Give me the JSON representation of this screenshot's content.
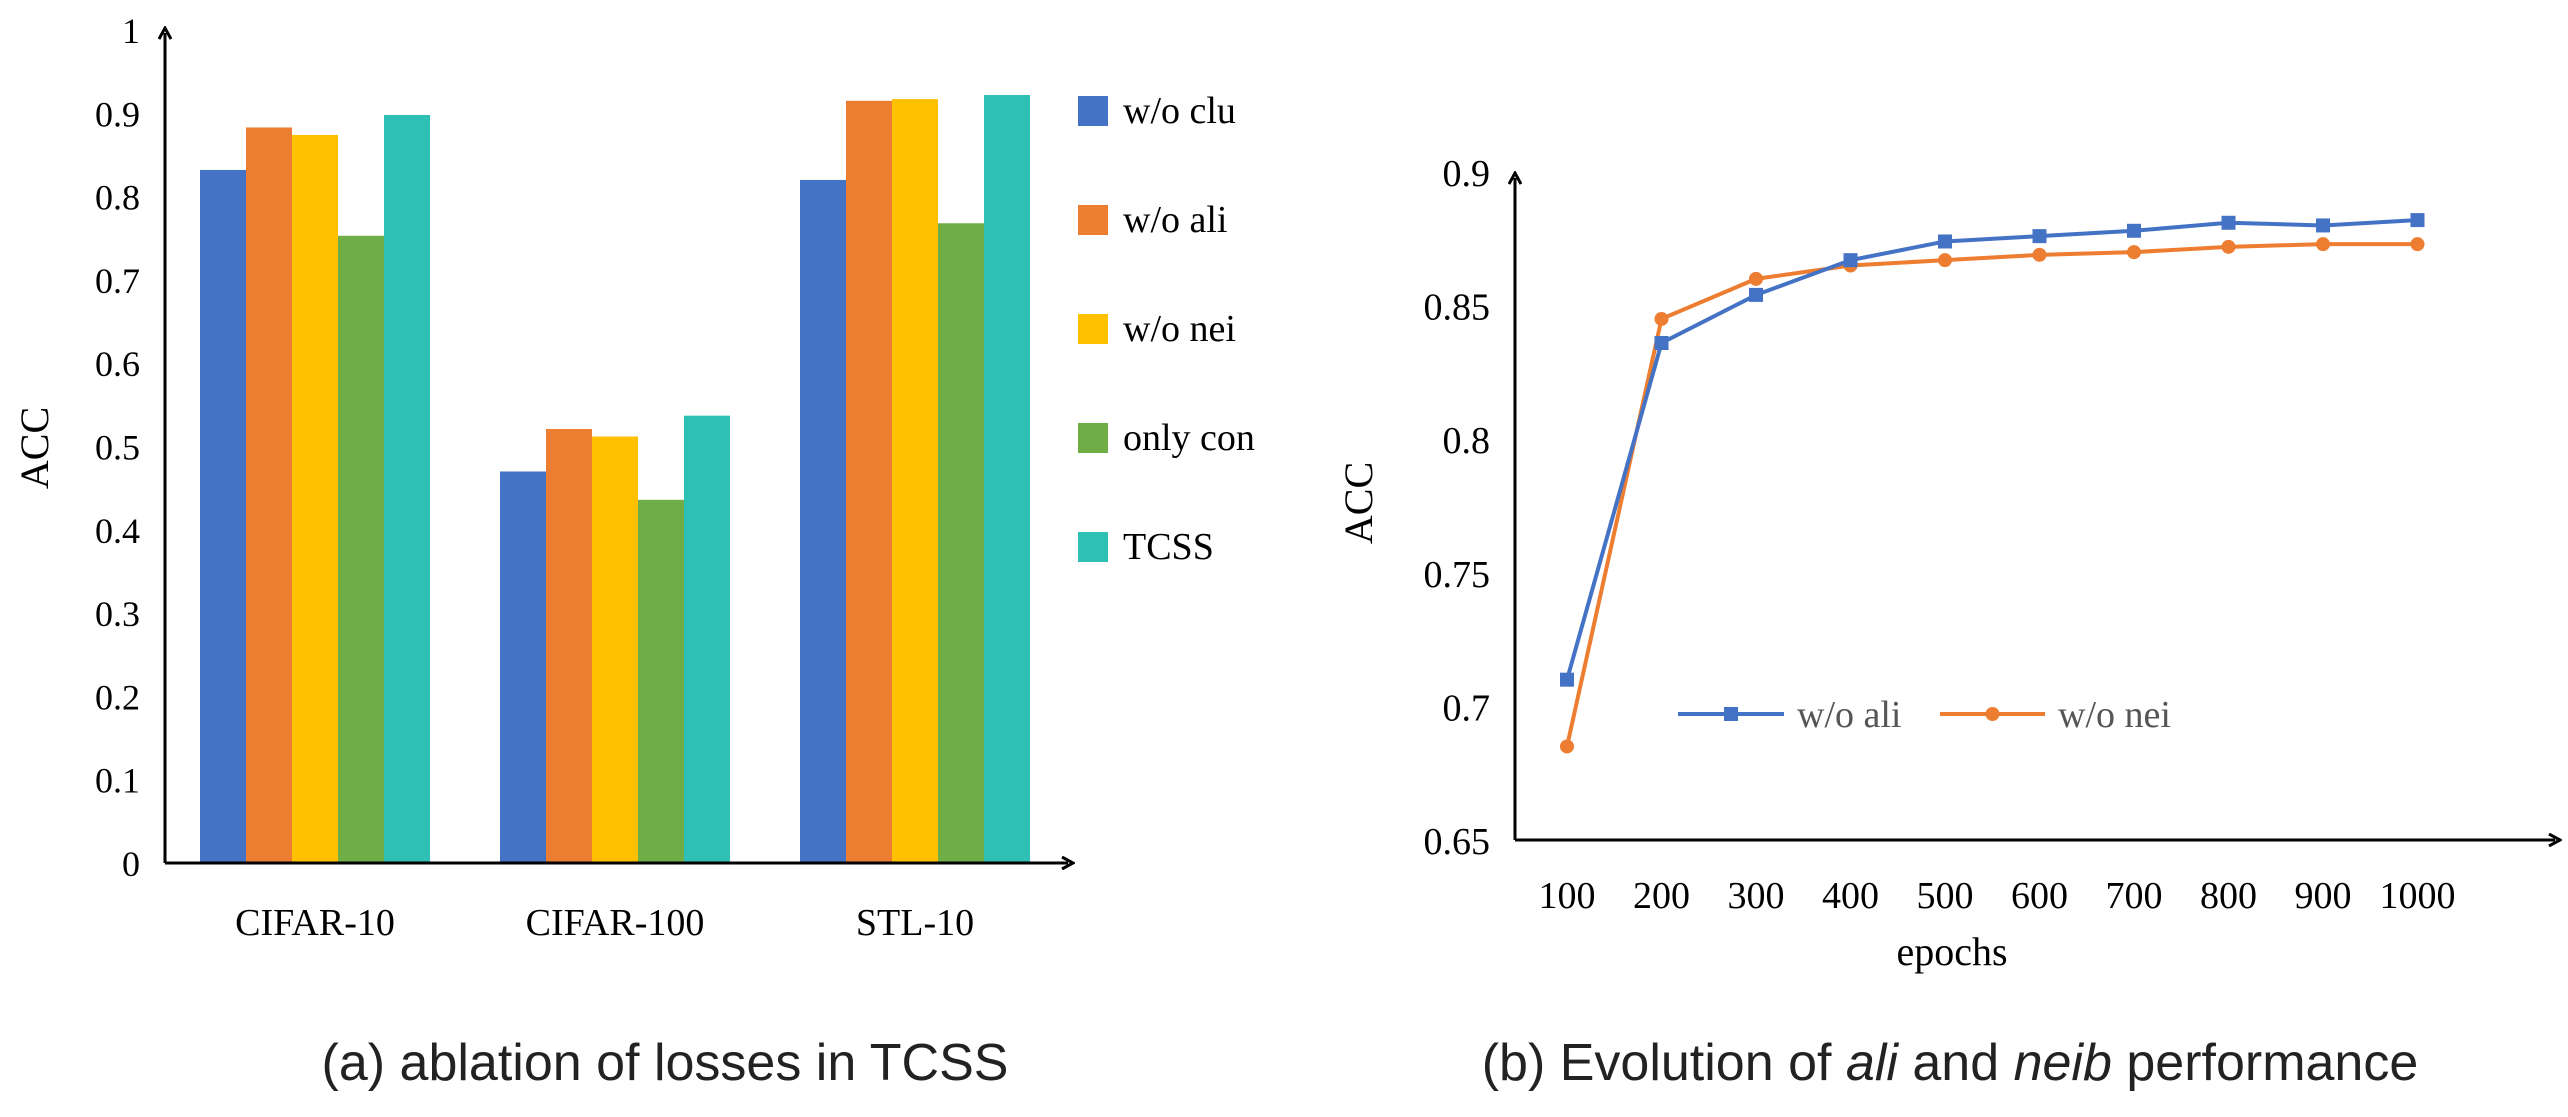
{
  "colors": {
    "w_o_clu": "#4472C4",
    "w_o_ali": "#ED7D31",
    "w_o_nei": "#FFC000",
    "only_con": "#70AD47",
    "tcss": "#2EC0B4",
    "axis": "#000000"
  },
  "chart_data": [
    {
      "type": "bar",
      "title": "",
      "caption": "(a) ablation of losses in TCSS",
      "xlabel": "",
      "ylabel": "ACC",
      "ylim": [
        0,
        1
      ],
      "yticks": [
        "0",
        "0.1",
        "0.2",
        "0.3",
        "0.4",
        "0.5",
        "0.6",
        "0.7",
        "0.8",
        "0.9",
        "1"
      ],
      "categories": [
        "CIFAR-10",
        "CIFAR-100",
        "STL-10"
      ],
      "legend_position": "right",
      "series": [
        {
          "name": "w/o clu",
          "values": [
            0.832,
            0.47,
            0.82
          ]
        },
        {
          "name": "w/o ali",
          "values": [
            0.883,
            0.521,
            0.915
          ]
        },
        {
          "name": "w/o nei",
          "values": [
            0.874,
            0.512,
            0.917
          ]
        },
        {
          "name": "only con",
          "values": [
            0.753,
            0.436,
            0.768
          ]
        },
        {
          "name": "TCSS",
          "values": [
            0.898,
            0.537,
            0.922
          ]
        }
      ]
    },
    {
      "type": "line",
      "title": "",
      "caption_prefix": "(b) Evolution of ",
      "caption_em1": "ali",
      "caption_mid": " and ",
      "caption_em2": "neib",
      "caption_suffix": " performance",
      "xlabel": "epochs",
      "ylabel": "ACC",
      "ylim": [
        0.65,
        0.9
      ],
      "yticks": [
        "0.65",
        "0.7",
        "0.75",
        "0.8",
        "0.85",
        "0.9"
      ],
      "x": [
        "100",
        "200",
        "300",
        "400",
        "500",
        "600",
        "700",
        "800",
        "900",
        "1000"
      ],
      "legend_position": "lower-center",
      "series": [
        {
          "name": "w/o ali",
          "marker": "square",
          "values": [
            0.71,
            0.836,
            0.854,
            0.867,
            0.874,
            0.876,
            0.878,
            0.881,
            0.88,
            0.882
          ]
        },
        {
          "name": "w/o nei",
          "marker": "circle",
          "values": [
            0.685,
            0.845,
            0.86,
            0.865,
            0.867,
            0.869,
            0.87,
            0.872,
            0.873,
            0.873
          ]
        }
      ]
    }
  ]
}
